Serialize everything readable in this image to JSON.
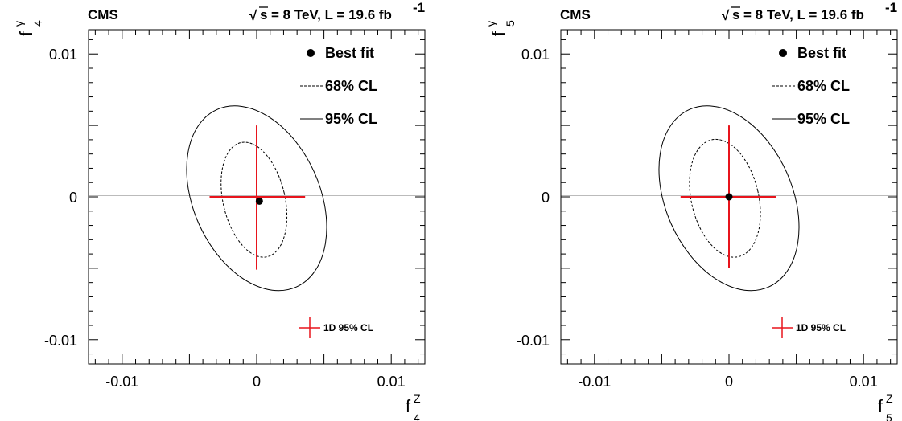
{
  "chart_data": [
    {
      "type": "scatter",
      "experiment": "CMS",
      "energy_label": "= 8 TeV, L = 19.6 fb",
      "energy_sqrt_symbol": "√s",
      "energy_exponent": "-1",
      "xlabel": "f",
      "xlabel_sup": "Z",
      "xlabel_sub": "4",
      "ylabel": "f",
      "ylabel_sup": "γ",
      "ylabel_sub": "4",
      "xlim": [
        -0.0125,
        0.0125
      ],
      "ylim": [
        -0.0117,
        0.0117
      ],
      "xticks": [
        -0.01,
        0,
        0.01
      ],
      "xtick_labels": [
        "-0.01",
        "0",
        "0.01"
      ],
      "yticks": [
        -0.01,
        0,
        0.01
      ],
      "ytick_labels": [
        "-0.01",
        "0",
        "0.01"
      ],
      "best_fit": {
        "x": 0.0002,
        "y": -0.0003
      },
      "contour_68": {
        "cx": -0.0002,
        "cy": -0.0002,
        "rx": 0.0023,
        "ry": 0.0041,
        "tilt_deg": -13
      },
      "contour_95": {
        "cx": 0.0,
        "cy": -0.0001,
        "rx": 0.0047,
        "ry": 0.0068,
        "tilt_deg": -24
      },
      "limits_1d_95": {
        "x": [
          -0.0035,
          0.0036
        ],
        "y": [
          -0.0051,
          0.005
        ]
      },
      "legend": {
        "position": "top-right",
        "items": [
          {
            "label": "Best fit",
            "style": "marker"
          },
          {
            "label": "68% CL",
            "style": "dashed"
          },
          {
            "label": "95% CL",
            "style": "solid"
          }
        ],
        "cross_label": "1D 95% CL",
        "cross_position": "bottom-right"
      },
      "colors": {
        "contour": "#000000",
        "limits": "#e8141c",
        "axis": "#000000",
        "sm_band": "#bbbbbb"
      }
    },
    {
      "type": "scatter",
      "experiment": "CMS",
      "energy_label": "= 8 TeV, L = 19.6 fb",
      "energy_sqrt_symbol": "√s",
      "energy_exponent": "-1",
      "xlabel": "f",
      "xlabel_sup": "Z",
      "xlabel_sub": "5",
      "ylabel": "f",
      "ylabel_sup": "γ",
      "ylabel_sub": "5",
      "xlim": [
        -0.0125,
        0.0125
      ],
      "ylim": [
        -0.0117,
        0.0117
      ],
      "xticks": [
        -0.01,
        0,
        0.01
      ],
      "xtick_labels": [
        "-0.01",
        "0",
        "0.01"
      ],
      "yticks": [
        -0.01,
        0,
        0.01
      ],
      "ytick_labels": [
        "-0.01",
        "0",
        "0.01"
      ],
      "best_fit": {
        "x": 0.0,
        "y": 0.0
      },
      "contour_68": {
        "cx": -0.0003,
        "cy": -0.0001,
        "rx": 0.0025,
        "ry": 0.0042,
        "tilt_deg": -13
      },
      "contour_95": {
        "cx": 0.0,
        "cy": -0.0001,
        "rx": 0.0047,
        "ry": 0.0068,
        "tilt_deg": -24
      },
      "limits_1d_95": {
        "x": [
          -0.0036,
          0.0035
        ],
        "y": [
          -0.005,
          0.005
        ]
      },
      "legend": {
        "position": "top-right",
        "items": [
          {
            "label": "Best fit",
            "style": "marker"
          },
          {
            "label": "68% CL",
            "style": "dashed"
          },
          {
            "label": "95% CL",
            "style": "solid"
          }
        ],
        "cross_label": "1D 95% CL",
        "cross_position": "bottom-right"
      },
      "colors": {
        "contour": "#000000",
        "limits": "#e8141c",
        "axis": "#000000",
        "sm_band": "#bbbbbb"
      }
    }
  ]
}
